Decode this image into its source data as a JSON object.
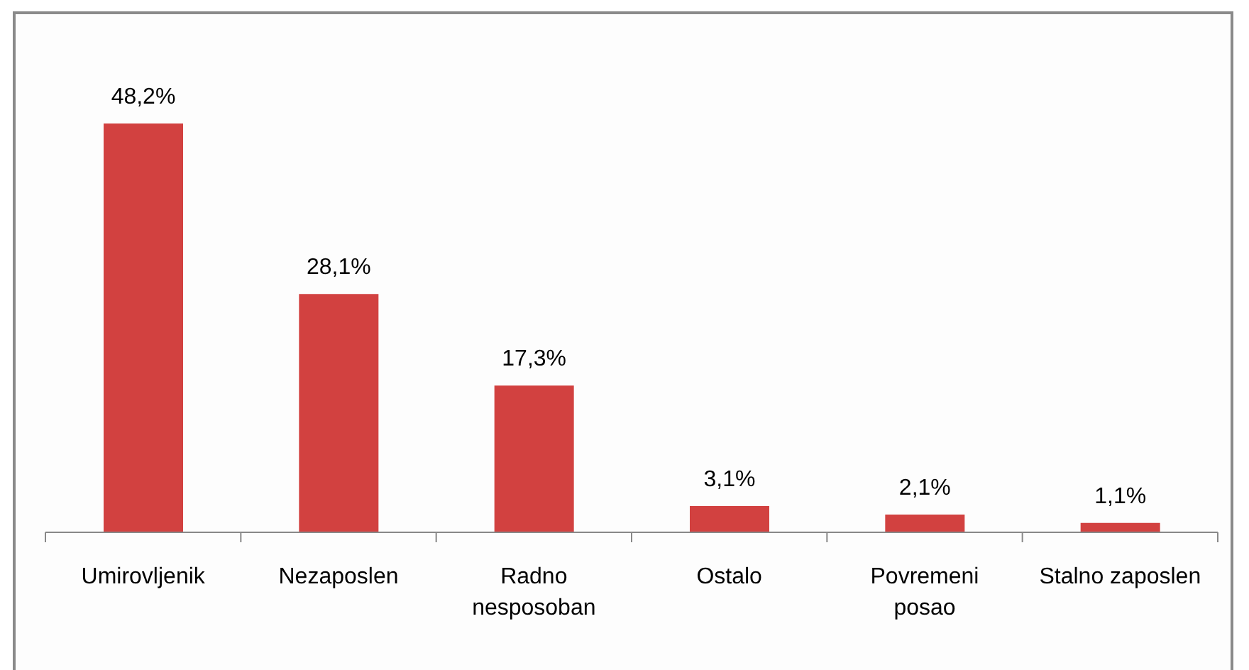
{
  "chart_data": {
    "type": "bar",
    "categories": [
      "Umirovljenik",
      "Nezaposlen",
      "Radno\nnesposoban",
      "Ostalo",
      "Povremeni\nposao",
      "Stalno zaposlen"
    ],
    "values": [
      48.2,
      28.1,
      17.3,
      3.1,
      2.1,
      1.1
    ],
    "value_labels": [
      "48,2%",
      "28,1%",
      "17,3%",
      "3,1%",
      "2,1%",
      "1,1%"
    ],
    "color": "#d24140",
    "grid": false,
    "legend": false
  }
}
